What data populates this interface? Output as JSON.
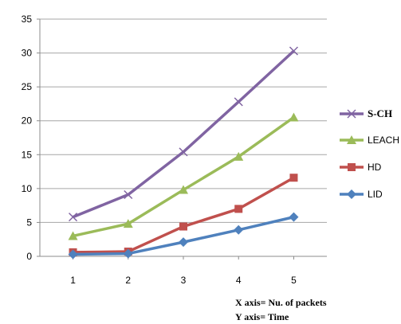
{
  "chart_data": {
    "type": "line",
    "x": [
      1,
      2,
      3,
      4,
      5
    ],
    "xlim": [
      0.4,
      5.6
    ],
    "ylim": [
      0,
      35
    ],
    "yticks": [
      0,
      5,
      10,
      15,
      20,
      25,
      30,
      35
    ],
    "grid": true,
    "legend_position": "right",
    "series": [
      {
        "name": "S-CH",
        "color": "#8064a2",
        "marker": "x",
        "values": [
          5.8,
          9.1,
          15.4,
          22.8,
          30.3
        ]
      },
      {
        "name": "LEACH",
        "color": "#9bbb59",
        "marker": "triangle",
        "values": [
          3.0,
          4.8,
          9.8,
          14.7,
          20.5
        ]
      },
      {
        "name": "HD",
        "color": "#c0504d",
        "marker": "square",
        "values": [
          0.6,
          0.7,
          4.4,
          7.0,
          11.6
        ]
      },
      {
        "name": "LID",
        "color": "#4f81bd",
        "marker": "diamond",
        "values": [
          0.3,
          0.4,
          2.1,
          3.9,
          5.8
        ]
      }
    ],
    "annotations": [
      "X axis= Nu. of packets",
      "Y axis= Time"
    ]
  }
}
